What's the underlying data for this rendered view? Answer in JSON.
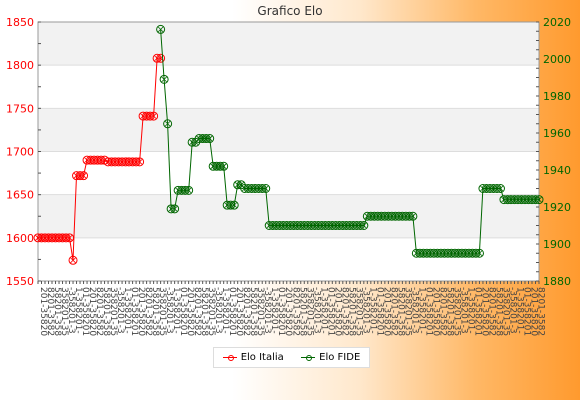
{
  "chart_data": {
    "type": "line",
    "title": "Grafico Elo",
    "grid": true,
    "legend_position": "bottom",
    "x_tick_labels": "unreadable rotated labels (one per rating period)",
    "y_left": {
      "min": 1550,
      "max": 1850,
      "ticks": [
        1550,
        1600,
        1650,
        1700,
        1750,
        1800,
        1850
      ]
    },
    "y_right": {
      "min": 1880,
      "max": 2020,
      "ticks": [
        1880,
        1900,
        1920,
        1940,
        1960,
        1980,
        2000,
        2020
      ]
    },
    "series": [
      {
        "name": "Elo Italia",
        "color": "#ff0000",
        "axis": "left",
        "values": [
          1600,
          1600,
          1600,
          1600,
          1600,
          1600,
          1600,
          1600,
          1600,
          1600,
          1574,
          1672,
          1672,
          1672,
          1690,
          1690,
          1690,
          1690,
          1690,
          1690,
          1688,
          1688,
          1688,
          1688,
          1688,
          1688,
          1688,
          1688,
          1688,
          1688,
          1741,
          1741,
          1741,
          1741,
          1808,
          1808
        ]
      },
      {
        "name": "Elo FIDE",
        "color": "#006600",
        "axis": "right",
        "start_index": 35,
        "values": [
          2016,
          1989,
          1965,
          1919,
          1919,
          1929,
          1929,
          1929,
          1929,
          1955,
          1955,
          1957,
          1957,
          1957,
          1957,
          1942,
          1942,
          1942,
          1942,
          1921,
          1921,
          1921,
          1932,
          1932,
          1930,
          1930,
          1930,
          1930,
          1930,
          1930,
          1930,
          1910,
          1910,
          1910,
          1910,
          1910,
          1910,
          1910,
          1910,
          1910,
          1910,
          1910,
          1910,
          1910,
          1910,
          1910,
          1910,
          1910,
          1910,
          1910,
          1910,
          1910,
          1910,
          1910,
          1910,
          1910,
          1910,
          1910,
          1910,
          1915,
          1915,
          1915,
          1915,
          1915,
          1915,
          1915,
          1915,
          1915,
          1915,
          1915,
          1915,
          1915,
          1915,
          1895,
          1895,
          1895,
          1895,
          1895,
          1895,
          1895,
          1895,
          1895,
          1895,
          1895,
          1895,
          1895,
          1895,
          1895,
          1895,
          1895,
          1895,
          1895,
          1930,
          1930,
          1930,
          1930,
          1930,
          1930,
          1924,
          1924,
          1924,
          1924,
          1924,
          1924,
          1924,
          1924,
          1924,
          1924,
          1924
        ]
      }
    ]
  }
}
